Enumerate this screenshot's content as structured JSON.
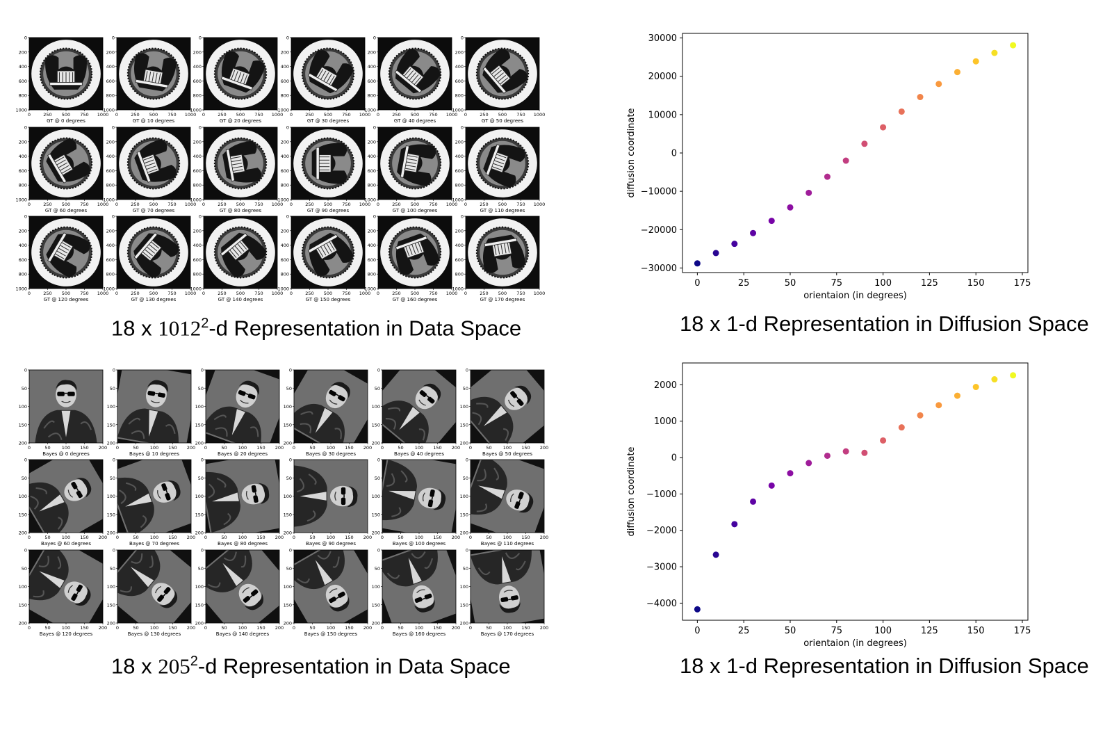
{
  "top_grid": {
    "caption_prefix": "18 x ",
    "caption_base": "1012",
    "caption_exp": "2",
    "caption_suffix": "-d Representation in Data Space",
    "kind": "seal",
    "label_prefix": "GT @ ",
    "label_suffix": " degrees",
    "yticks": [
      "0",
      "200",
      "400",
      "600",
      "800",
      "1000"
    ],
    "xticks": [
      "0",
      "250",
      "500",
      "750",
      "1000"
    ],
    "angles": [
      0,
      10,
      20,
      30,
      40,
      50,
      60,
      70,
      80,
      90,
      100,
      110,
      120,
      130,
      140,
      150,
      160,
      170
    ]
  },
  "bottom_grid": {
    "caption_prefix": "18 x ",
    "caption_base": "205",
    "caption_exp": "2",
    "caption_suffix": "-d Representation in Data Space",
    "kind": "portrait",
    "label_prefix": "Bayes @ ",
    "label_suffix": " degrees",
    "yticks": [
      "0",
      "50",
      "100",
      "150",
      "200"
    ],
    "xticks": [
      "0",
      "50",
      "100",
      "150",
      "200"
    ],
    "angles": [
      0,
      10,
      20,
      30,
      40,
      50,
      60,
      70,
      80,
      90,
      100,
      110,
      120,
      130,
      140,
      150,
      160,
      170
    ]
  },
  "chart_data": [
    {
      "type": "scatter",
      "title": "",
      "caption": "18 x 1-d Representation in Diffusion Space",
      "xlabel": "orientaion (in degrees)",
      "ylabel": "diffusion coordinate",
      "xlim": [
        -8,
        178
      ],
      "ylim": [
        -31200,
        31200
      ],
      "xticks": [
        0,
        25,
        50,
        75,
        100,
        125,
        150,
        175
      ],
      "yticks": [
        -30000,
        -20000,
        -10000,
        0,
        10000,
        20000,
        30000
      ],
      "colormap": "plasma",
      "x": [
        0,
        10,
        20,
        30,
        40,
        50,
        60,
        70,
        80,
        90,
        100,
        110,
        120,
        130,
        140,
        150,
        160,
        170
      ],
      "y": [
        -28800,
        -26100,
        -23700,
        -20900,
        -17700,
        -14200,
        -10400,
        -6200,
        -2000,
        2400,
        6700,
        10800,
        14600,
        18000,
        21100,
        23900,
        26100,
        28100
      ]
    },
    {
      "type": "scatter",
      "title": "",
      "caption": "18 x 1-d Representation in Diffusion Space",
      "xlabel": "orientaion (in degrees)",
      "ylabel": "diffusion coordinate",
      "xlim": [
        -8,
        178
      ],
      "ylim": [
        -4470,
        2600
      ],
      "xticks": [
        0,
        25,
        50,
        75,
        100,
        125,
        150,
        175
      ],
      "yticks": [
        -4000,
        -3000,
        -2000,
        -1000,
        0,
        1000,
        2000
      ],
      "colormap": "plasma",
      "x": [
        0,
        10,
        20,
        30,
        40,
        50,
        60,
        70,
        80,
        90,
        100,
        110,
        120,
        130,
        140,
        150,
        160,
        170
      ],
      "y": [
        -4170,
        -2670,
        -1830,
        -1210,
        -770,
        -430,
        -150,
        50,
        170,
        130,
        470,
        830,
        1160,
        1440,
        1700,
        1940,
        2150,
        2260
      ]
    }
  ]
}
